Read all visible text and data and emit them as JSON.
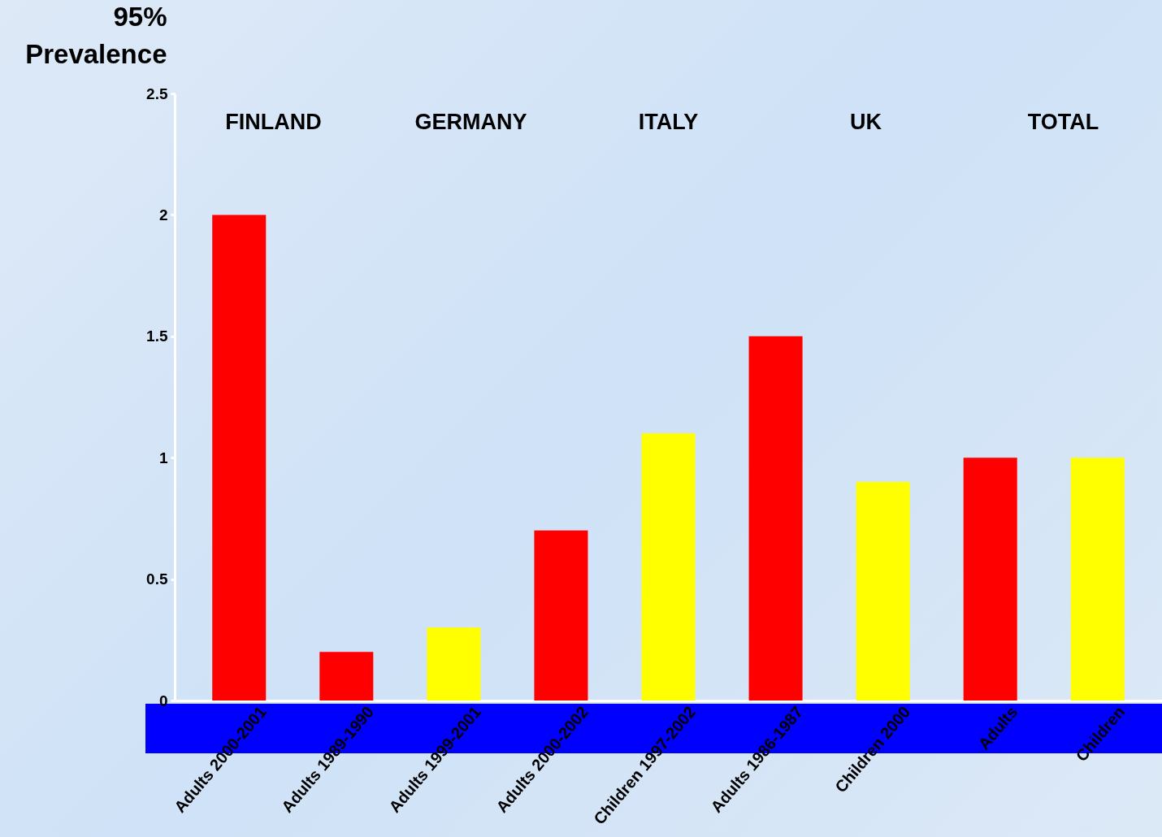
{
  "chart_data": {
    "type": "bar",
    "ylabel": "95% Prevalence",
    "categories": [
      "Adults 2000-2001",
      "Adults 1989-1990",
      "Adults 1999-2001",
      "Adults 2000-2002",
      "Children 1997-2002",
      "Adults 1986-1987",
      "Children 2000",
      "Adults",
      "Children"
    ],
    "values": [
      2.0,
      0.2,
      0.3,
      0.7,
      1.1,
      1.5,
      0.9,
      1.0,
      1.0
    ],
    "colors": [
      "#ff0000",
      "#ff0000",
      "#ffff00",
      "#ff0000",
      "#ffff00",
      "#ff0000",
      "#ffff00",
      "#ff0000",
      "#ffff00"
    ],
    "ylim": [
      0,
      2.5
    ],
    "yticks": [
      0,
      0.5,
      1,
      1.5,
      2,
      2.5
    ],
    "annotations": [
      "FINLAND",
      "GERMANY",
      "ITALY",
      "UK",
      "TOTAL"
    ],
    "grid": false
  }
}
